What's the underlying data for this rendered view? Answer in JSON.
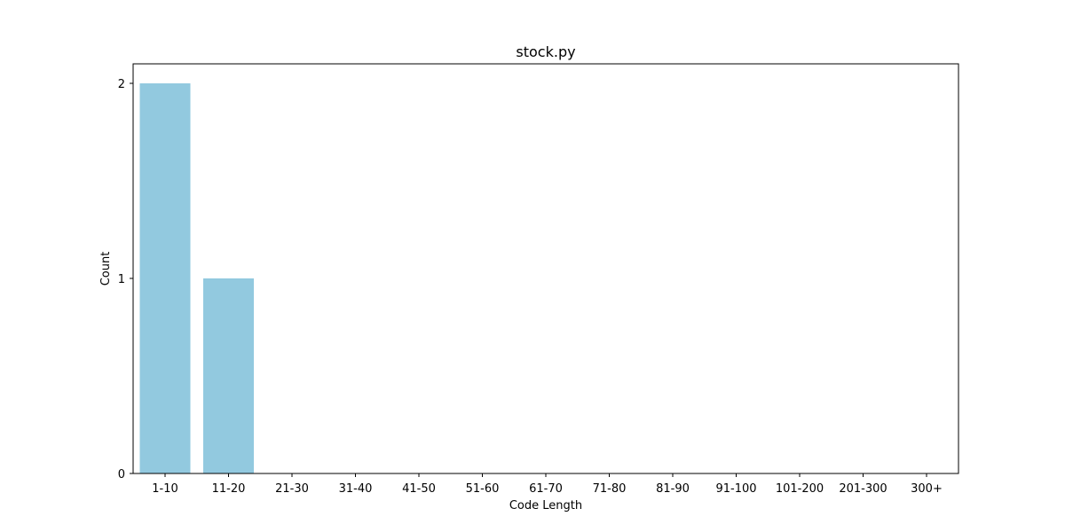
{
  "chart_data": {
    "type": "bar",
    "title": "stock.py",
    "xlabel": "Code Length",
    "ylabel": "Count",
    "categories": [
      "1-10",
      "11-20",
      "21-30",
      "31-40",
      "41-50",
      "51-60",
      "61-70",
      "71-80",
      "81-90",
      "91-100",
      "101-200",
      "201-300",
      "300+"
    ],
    "values": [
      2,
      1,
      0,
      0,
      0,
      0,
      0,
      0,
      0,
      0,
      0,
      0,
      0
    ],
    "ylim": [
      0,
      2.1
    ],
    "yticks": [
      "0",
      "1",
      "2"
    ],
    "grid": false,
    "legend": "none",
    "bar_color": "#92c9df"
  }
}
